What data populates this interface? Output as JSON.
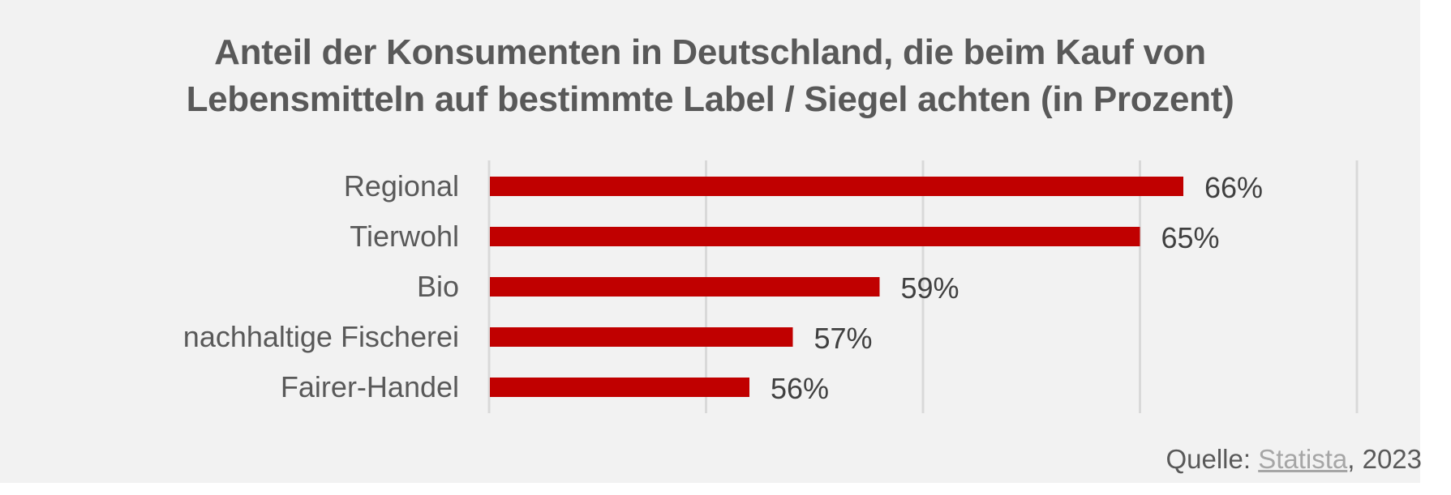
{
  "chart_data": {
    "type": "bar",
    "orientation": "horizontal",
    "title": "Anteil der Konsumenten in Deutschland, die beim Kauf von Lebensmitteln auf bestimmte Label / Siegel achten (in Prozent)",
    "title_lines": [
      "Anteil der Konsumenten in Deutschland, die beim Kauf von",
      "Lebensmitteln auf bestimmte Label / Siegel achten (in Prozent)"
    ],
    "categories": [
      "Regional",
      "Tierwohl",
      "Bio",
      "nachhaltige Fischerei",
      "Fairer-Handel"
    ],
    "values": [
      66,
      65,
      59,
      57,
      56
    ],
    "value_labels": [
      "66%",
      "65%",
      "59%",
      "57%",
      "56%"
    ],
    "xlabel": "",
    "ylabel": "",
    "xlim": [
      50,
      70
    ],
    "gridlines": [
      50,
      55,
      60,
      65,
      70
    ],
    "grid": true,
    "legend": "none",
    "bar_color": "#c00000",
    "grid_color": "#d9d9d9"
  },
  "source": {
    "prefix": "Quelle: ",
    "link_text": "Statista",
    "suffix": ", 2023"
  }
}
